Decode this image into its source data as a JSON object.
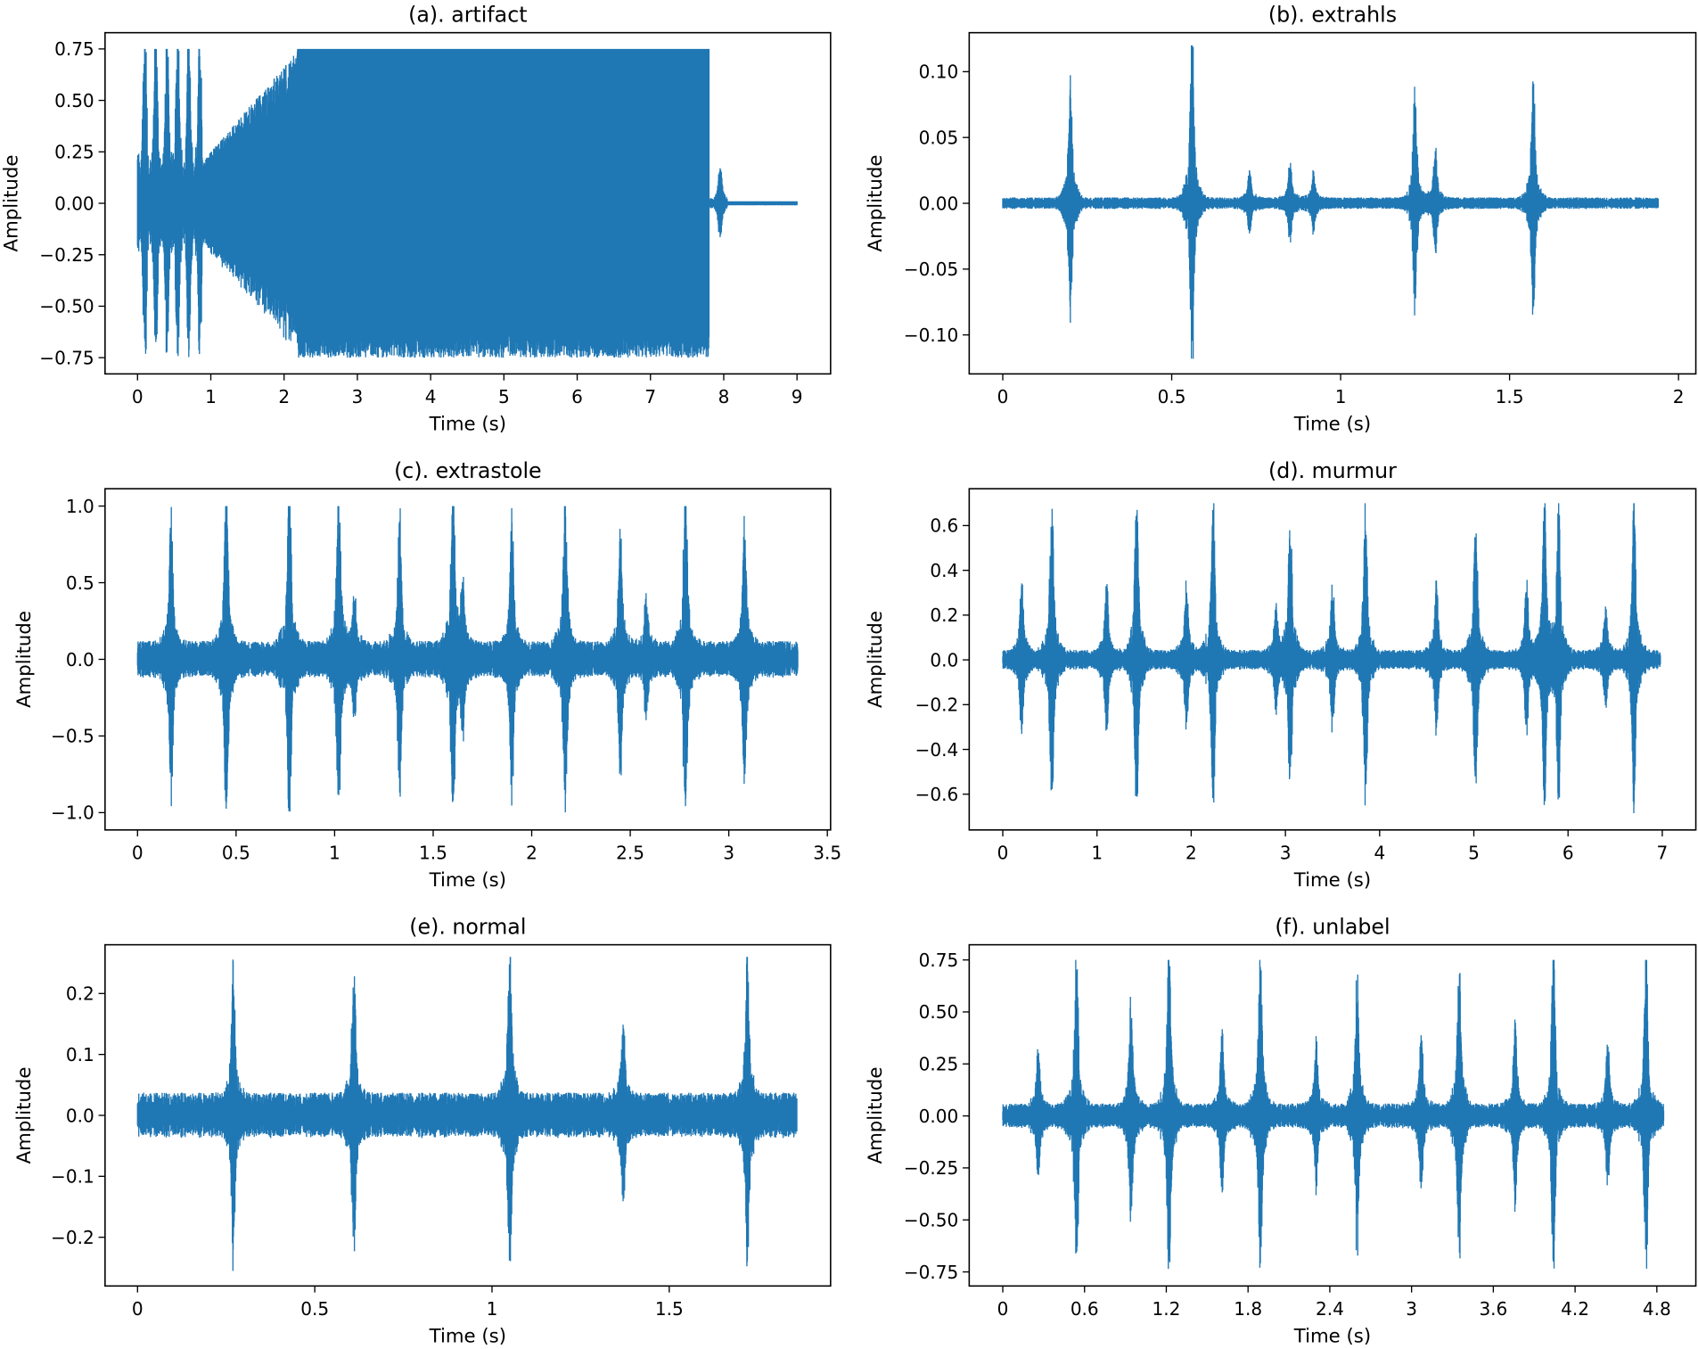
{
  "chart_data": [
    {
      "type": "line",
      "title": "(a). artifact",
      "xlabel": "Time (s)",
      "ylabel": "Amplitude",
      "xlim": [
        0,
        9
      ],
      "ylim": [
        -0.75,
        0.75
      ],
      "xticks": [
        "0",
        "1",
        "2",
        "3",
        "4",
        "5",
        "6",
        "7",
        "8",
        "9"
      ],
      "xtick_values": [
        0,
        1,
        2,
        3,
        4,
        5,
        6,
        7,
        8,
        9
      ],
      "yticks": [
        "0.75",
        "0.50",
        "0.25",
        "0.00",
        "−0.25",
        "−0.50",
        "−0.75"
      ],
      "ytick_values": [
        0.75,
        0.5,
        0.25,
        0,
        -0.25,
        -0.5,
        -0.75
      ],
      "duration": 9.0,
      "noise": 0.01,
      "clipped_region": [
        1.0,
        7.8
      ],
      "clip_amplitude": 0.75,
      "bursts": [
        [
          0.0,
          0.16
        ],
        [
          0.1,
          0.75
        ],
        [
          0.25,
          0.75
        ],
        [
          0.4,
          0.75
        ],
        [
          0.55,
          0.75
        ],
        [
          0.7,
          0.75
        ],
        [
          0.85,
          0.75
        ],
        [
          7.95,
          0.16
        ]
      ]
    },
    {
      "type": "line",
      "title": "(b). extrahls",
      "xlabel": "Time (s)",
      "ylabel": "Amplitude",
      "xlim": [
        0,
        2
      ],
      "ylim": [
        -0.12,
        0.12
      ],
      "xticks": [
        "0",
        "0.5",
        "1",
        "1.5",
        "2"
      ],
      "xtick_values": [
        0,
        0.5,
        1,
        1.5,
        2
      ],
      "yticks": [
        "0.10",
        "0.05",
        "0.00",
        "−0.05",
        "−0.10"
      ],
      "ytick_values": [
        0.1,
        0.05,
        0,
        -0.05,
        -0.1
      ],
      "duration": 1.94,
      "noise": 0.003,
      "bursts": [
        [
          0.2,
          0.08
        ],
        [
          0.56,
          0.12
        ],
        [
          0.73,
          0.02
        ],
        [
          0.85,
          0.025
        ],
        [
          0.92,
          0.02
        ],
        [
          1.22,
          0.075
        ],
        [
          1.28,
          0.035
        ],
        [
          1.57,
          0.085
        ]
      ]
    },
    {
      "type": "line",
      "title": "(c). extrastole",
      "xlabel": "Time (s)",
      "ylabel": "Amplitude",
      "xlim": [
        0,
        3.5
      ],
      "ylim": [
        -1.0,
        1.0
      ],
      "xticks": [
        "0",
        "0.5",
        "1",
        "1.5",
        "2",
        "2.5",
        "3",
        "3.5"
      ],
      "xtick_values": [
        0,
        0.5,
        1,
        1.5,
        2,
        2.5,
        3,
        3.5
      ],
      "yticks": [
        "1.0",
        "0.5",
        "0.0",
        "−0.5",
        "−1.0"
      ],
      "ytick_values": [
        1,
        0.5,
        0,
        -0.5,
        -1
      ],
      "duration": 3.35,
      "noise": 0.08,
      "bursts": [
        [
          0.17,
          0.8
        ],
        [
          0.45,
          1.0
        ],
        [
          0.77,
          1.0
        ],
        [
          1.02,
          1.0
        ],
        [
          1.1,
          0.35
        ],
        [
          1.33,
          0.8
        ],
        [
          1.6,
          1.0
        ],
        [
          1.65,
          0.4
        ],
        [
          1.9,
          0.8
        ],
        [
          2.17,
          1.0
        ],
        [
          2.45,
          0.7
        ],
        [
          2.58,
          0.3
        ],
        [
          2.78,
          1.0
        ],
        [
          3.08,
          0.8
        ]
      ]
    },
    {
      "type": "line",
      "title": "(d). murmur",
      "xlabel": "Time (s)",
      "ylabel": "Amplitude",
      "xlim": [
        0,
        7
      ],
      "ylim": [
        -0.7,
        0.7
      ],
      "xticks": [
        "0",
        "1",
        "2",
        "3",
        "4",
        "5",
        "6",
        "7"
      ],
      "xtick_values": [
        0,
        1,
        2,
        3,
        4,
        5,
        6,
        7
      ],
      "yticks": [
        "0.6",
        "0.4",
        "0.2",
        "0.0",
        "−0.2",
        "−0.4",
        "−0.6"
      ],
      "ytick_values": [
        0.6,
        0.4,
        0.2,
        0,
        -0.2,
        -0.4,
        -0.6
      ],
      "duration": 6.98,
      "noise": 0.03,
      "bursts": [
        [
          0.2,
          0.3
        ],
        [
          0.52,
          0.65
        ],
        [
          1.1,
          0.3
        ],
        [
          1.42,
          0.63
        ],
        [
          1.95,
          0.3
        ],
        [
          2.23,
          0.65
        ],
        [
          2.9,
          0.2
        ],
        [
          3.05,
          0.58
        ],
        [
          3.5,
          0.3
        ],
        [
          3.85,
          0.6
        ],
        [
          4.6,
          0.3
        ],
        [
          5.02,
          0.55
        ],
        [
          5.56,
          0.3
        ],
        [
          5.75,
          0.7
        ],
        [
          5.9,
          0.6
        ],
        [
          6.4,
          0.2
        ],
        [
          6.7,
          0.63
        ]
      ]
    },
    {
      "type": "line",
      "title": "(e). normal",
      "xlabel": "Time (s)",
      "ylabel": "Amplitude",
      "xlim": [
        0,
        1.86
      ],
      "ylim": [
        -0.26,
        0.26
      ],
      "xticks": [
        "0",
        "0.5",
        "1",
        "1.5"
      ],
      "xtick_values": [
        0,
        0.5,
        1,
        1.5
      ],
      "yticks": [
        "0.2",
        "0.1",
        "0.0",
        "−0.1",
        "−0.2"
      ],
      "ytick_values": [
        0.2,
        0.1,
        0,
        -0.1,
        -0.2
      ],
      "duration": 1.86,
      "noise": 0.025,
      "bursts": [
        [
          0.27,
          0.19
        ],
        [
          0.61,
          0.2
        ],
        [
          1.05,
          0.25
        ],
        [
          1.37,
          0.13
        ],
        [
          1.72,
          0.22
        ]
      ]
    },
    {
      "type": "line",
      "title": "(f). unlabel",
      "xlabel": "Time (s)",
      "ylabel": "Amplitude",
      "xlim": [
        0,
        4.8
      ],
      "ylim": [
        -0.75,
        0.75
      ],
      "xticks": [
        "0",
        "0.6",
        "1.2",
        "1.8",
        "2.4",
        "3",
        "3.6",
        "4.2",
        "4.8"
      ],
      "xtick_values": [
        0,
        0.6,
        1.2,
        1.8,
        2.4,
        3,
        3.6,
        4.2,
        4.8
      ],
      "yticks": [
        "0.75",
        "0.50",
        "0.25",
        "0.00",
        "−0.25",
        "−0.50",
        "−0.75"
      ],
      "ytick_values": [
        0.75,
        0.5,
        0.25,
        0,
        -0.25,
        -0.5,
        -0.75
      ],
      "duration": 4.85,
      "noise": 0.04,
      "bursts": [
        [
          0.26,
          0.27
        ],
        [
          0.54,
          0.7
        ],
        [
          0.94,
          0.48
        ],
        [
          1.22,
          0.75
        ],
        [
          1.61,
          0.34
        ],
        [
          1.89,
          0.67
        ],
        [
          2.3,
          0.28
        ],
        [
          2.6,
          0.58
        ],
        [
          3.07,
          0.33
        ],
        [
          3.35,
          0.63
        ],
        [
          3.76,
          0.39
        ],
        [
          4.04,
          0.69
        ],
        [
          4.44,
          0.28
        ],
        [
          4.72,
          0.66
        ]
      ]
    }
  ],
  "colors": {
    "series": "#1f77b4",
    "axes": "#000000"
  }
}
